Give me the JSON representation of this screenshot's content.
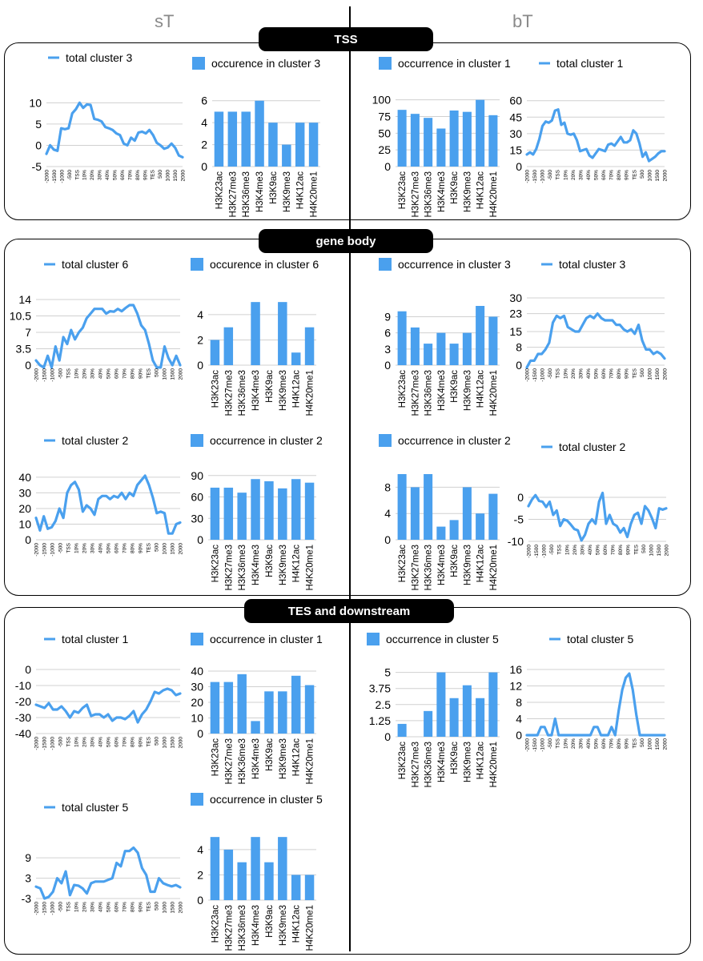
{
  "headers": {
    "left": "sT",
    "right": "bT"
  },
  "sections": [
    {
      "title": "TSS"
    },
    {
      "title": "gene body"
    },
    {
      "title": "TES and downstream"
    }
  ],
  "colors": {
    "series": "#4aa0ee",
    "grid": "#d0d0d0",
    "frame": "#000000"
  },
  "marks": [
    "H3K23ac",
    "H3K27me3",
    "H3K36me3",
    "H3K4me3",
    "H3K9ac",
    "H3K9me3",
    "H4K12ac",
    "H4K20me1"
  ],
  "profile_x": [
    "-2000",
    "-1500",
    "-1000",
    "-500",
    "TSS",
    "10%",
    "20%",
    "30%",
    "40%",
    "50%",
    "60%",
    "70%",
    "80%",
    "90%",
    "TES",
    "500",
    "1000",
    "1500",
    "2000"
  ],
  "chart_data": [
    {
      "id": "tss-st-line",
      "type": "line",
      "legend": "total cluster 3",
      "yticks": [
        10,
        5,
        0,
        -5
      ],
      "ylim": [
        -5,
        11
      ],
      "values": [
        -2,
        0,
        -1,
        -1.3,
        4,
        3.8,
        4,
        7.5,
        8.5,
        10,
        8.8,
        9.6,
        9.5,
        6.2,
        6,
        5.6,
        4.3,
        4,
        3.6,
        2.8,
        2.4,
        0.4,
        0,
        1.8,
        1.1,
        3,
        3.2,
        2.8,
        3.6,
        2.4,
        0.6,
        0,
        -0.8,
        -0.5,
        0.4,
        -0.6,
        -2.4,
        -2.8
      ]
    },
    {
      "id": "tss-st-bar",
      "type": "bar",
      "legend": "occurence in cluster 3",
      "yticks": [
        6,
        4,
        2,
        0
      ],
      "ylim": [
        0,
        6.2
      ],
      "values": [
        5,
        5,
        5,
        6,
        4,
        2,
        4,
        4
      ]
    },
    {
      "id": "tss-bt-bar",
      "type": "bar",
      "legend": "occurrence in cluster 1",
      "yticks": [
        100,
        75,
        50,
        25,
        0
      ],
      "ylim": [
        0,
        102
      ],
      "values": [
        85,
        79,
        73,
        57,
        84,
        82,
        100,
        77
      ]
    },
    {
      "id": "tss-bt-line",
      "type": "line",
      "legend": "total cluster 1",
      "yticks": [
        60,
        45,
        30,
        15,
        0
      ],
      "ylim": [
        0,
        62
      ],
      "values": [
        11,
        13,
        11,
        16,
        25,
        37,
        41,
        40,
        42,
        51,
        52,
        38,
        40,
        30,
        29,
        30,
        24,
        14,
        15,
        16,
        10,
        8,
        12,
        16,
        15,
        14,
        20,
        21,
        19,
        23,
        27,
        22,
        22,
        24,
        33,
        30,
        21,
        9,
        13,
        5,
        7,
        9,
        12,
        14,
        14
      ]
    },
    {
      "id": "gb-st-line-6",
      "type": "line",
      "legend": "total cluster 6",
      "yticks": [
        14,
        10.5,
        7,
        3.5,
        0
      ],
      "ylim": [
        0,
        14
      ],
      "values": [
        1,
        0,
        -0.5,
        2,
        -0.5,
        4,
        1,
        6,
        4.5,
        7.5,
        5.5,
        7,
        8,
        10,
        11,
        12,
        12,
        12,
        11,
        11.5,
        11.4,
        12,
        11.5,
        12.2,
        12.8,
        12.8,
        11,
        8.5,
        7.5,
        4.5,
        1,
        -0.5,
        -0.5,
        4,
        1.5,
        0,
        2,
        0
      ]
    },
    {
      "id": "gb-st-bar-6",
      "type": "bar",
      "legend": "occurence in cluster 6",
      "yticks": [
        4,
        2,
        0
      ],
      "ylim": [
        0,
        5.2
      ],
      "values": [
        2,
        3,
        0,
        5,
        0,
        5,
        1,
        3
      ]
    },
    {
      "id": "gb-bt-bar-3",
      "type": "bar",
      "legend": "occurrence in cluster 3",
      "yticks": [
        9,
        6,
        3,
        0
      ],
      "ylim": [
        0,
        11
      ],
      "values": [
        10,
        7,
        4,
        6,
        4,
        6,
        11,
        9
      ]
    },
    {
      "id": "gb-bt-line-3",
      "type": "line",
      "legend": "total cluster 3",
      "yticks": [
        30,
        23,
        15,
        8,
        0
      ],
      "ylim": [
        0,
        30
      ],
      "values": [
        -1,
        2,
        2,
        5,
        5,
        7,
        10,
        19,
        22,
        21,
        22,
        17,
        16,
        15,
        15,
        18,
        21,
        22,
        21,
        23,
        21,
        20,
        20,
        20,
        18,
        18,
        16,
        15,
        16,
        14,
        18,
        11,
        7,
        7,
        5,
        6,
        5,
        3
      ]
    },
    {
      "id": "gb-st-line-2",
      "type": "line",
      "legend": "total cluster 2",
      "yticks": [
        40,
        30,
        20,
        10,
        0
      ],
      "ylim": [
        0,
        42
      ],
      "values": [
        14,
        6,
        15,
        7,
        8,
        12,
        20,
        14,
        30,
        35,
        37,
        32,
        18,
        22,
        20,
        16,
        26,
        28,
        28,
        26,
        28,
        27,
        30,
        26,
        30,
        28,
        35,
        38,
        41,
        35,
        27,
        17,
        18,
        17,
        4,
        4,
        10,
        11
      ]
    },
    {
      "id": "gb-st-bar-2",
      "type": "bar",
      "legend": "occurrence in cluster 2",
      "yticks": [
        90,
        60,
        30,
        0
      ],
      "ylim": [
        0,
        92
      ],
      "values": [
        73,
        73,
        66,
        85,
        82,
        72,
        85,
        80
      ]
    },
    {
      "id": "gb-bt-bar-2",
      "type": "bar",
      "legend": "occurrence in cluster 2",
      "yticks": [
        8,
        4,
        0
      ],
      "ylim": [
        0,
        10
      ],
      "values": [
        10,
        8,
        10,
        2,
        3,
        8,
        4,
        7
      ]
    },
    {
      "id": "gb-bt-line-2",
      "type": "line",
      "legend": "total cluster 2",
      "yticks": [
        0,
        -5,
        -10
      ],
      "ylim": [
        -10,
        2
      ],
      "values": [
        -2,
        -0.5,
        0.5,
        -0.8,
        -1,
        -2.2,
        -1,
        -4,
        -3,
        -6.5,
        -5,
        -5.3,
        -6.2,
        -7.2,
        -7.5,
        -9.8,
        -8.5,
        -6,
        -5,
        -6,
        -1,
        1,
        -6,
        -4,
        -6,
        -6.5,
        -8,
        -7,
        -9,
        -6,
        -4,
        -3.5,
        -6,
        -2,
        -3,
        -4.8,
        -7,
        -2.5,
        -2.8,
        -2.5
      ]
    },
    {
      "id": "tes-st-line-1",
      "type": "line",
      "legend": "total cluster 1",
      "yticks": [
        0,
        -10,
        -20,
        -30,
        -40
      ],
      "ylim": [
        -40,
        0
      ],
      "values": [
        -22,
        -23,
        -24,
        -21,
        -25,
        -25,
        -23,
        -26,
        -30,
        -26,
        -27,
        -24,
        -22,
        -29,
        -28,
        -28,
        -30,
        -28,
        -32,
        -30,
        -30,
        -31,
        -29,
        -26,
        -33,
        -28,
        -25,
        -20,
        -14,
        -15,
        -13,
        -12,
        -13,
        -16,
        -15
      ]
    },
    {
      "id": "tes-st-bar-1",
      "type": "bar",
      "legend": "occurrence in cluster 1",
      "yticks": [
        40,
        30,
        20,
        10,
        0
      ],
      "ylim": [
        0,
        41
      ],
      "values": [
        33,
        33,
        38,
        8,
        27,
        27,
        37,
        31
      ]
    },
    {
      "id": "tes-bt-bar-5",
      "type": "bar",
      "legend": "occurrence in cluster 5",
      "yticks": [
        5,
        3.75,
        2.5,
        1.25,
        0
      ],
      "ylim": [
        0,
        5.1
      ],
      "values": [
        1,
        0,
        2,
        5,
        3,
        4,
        3,
        5
      ]
    },
    {
      "id": "tes-bt-line-5",
      "type": "line",
      "legend": "total cluster 5",
      "yticks": [
        16,
        12,
        8,
        4,
        0
      ],
      "ylim": [
        0,
        16
      ],
      "values": [
        0,
        0,
        0,
        0,
        2,
        2,
        0,
        0,
        4,
        0,
        0,
        0,
        0,
        0,
        0,
        0,
        0,
        0,
        0,
        2,
        2,
        0,
        0,
        0,
        2,
        0,
        6,
        11,
        14,
        15,
        11,
        5,
        0,
        0,
        0,
        0,
        0,
        0,
        0,
        0
      ]
    },
    {
      "id": "tes-st-line-5",
      "type": "line",
      "legend": "total cluster 5",
      "yticks": [
        9,
        3,
        -3
      ],
      "ylim": [
        -3,
        14
      ],
      "values": [
        0.5,
        0,
        -3,
        -2.5,
        -1,
        3,
        1.5,
        5,
        -2,
        1,
        0.8,
        0,
        -1.5,
        1.5,
        2,
        2,
        2,
        2.5,
        3,
        7.5,
        6.5,
        11,
        11,
        12,
        10.5,
        6,
        4,
        -1,
        -1,
        3,
        1.5,
        1,
        0.6,
        1,
        0.3
      ]
    },
    {
      "id": "tes-st-bar-5",
      "type": "bar",
      "legend": "occurrence in cluster 5",
      "yticks": [
        4,
        2,
        0
      ],
      "ylim": [
        0,
        5.2
      ],
      "values": [
        5,
        4,
        3,
        5,
        3,
        5,
        2,
        2
      ]
    }
  ]
}
